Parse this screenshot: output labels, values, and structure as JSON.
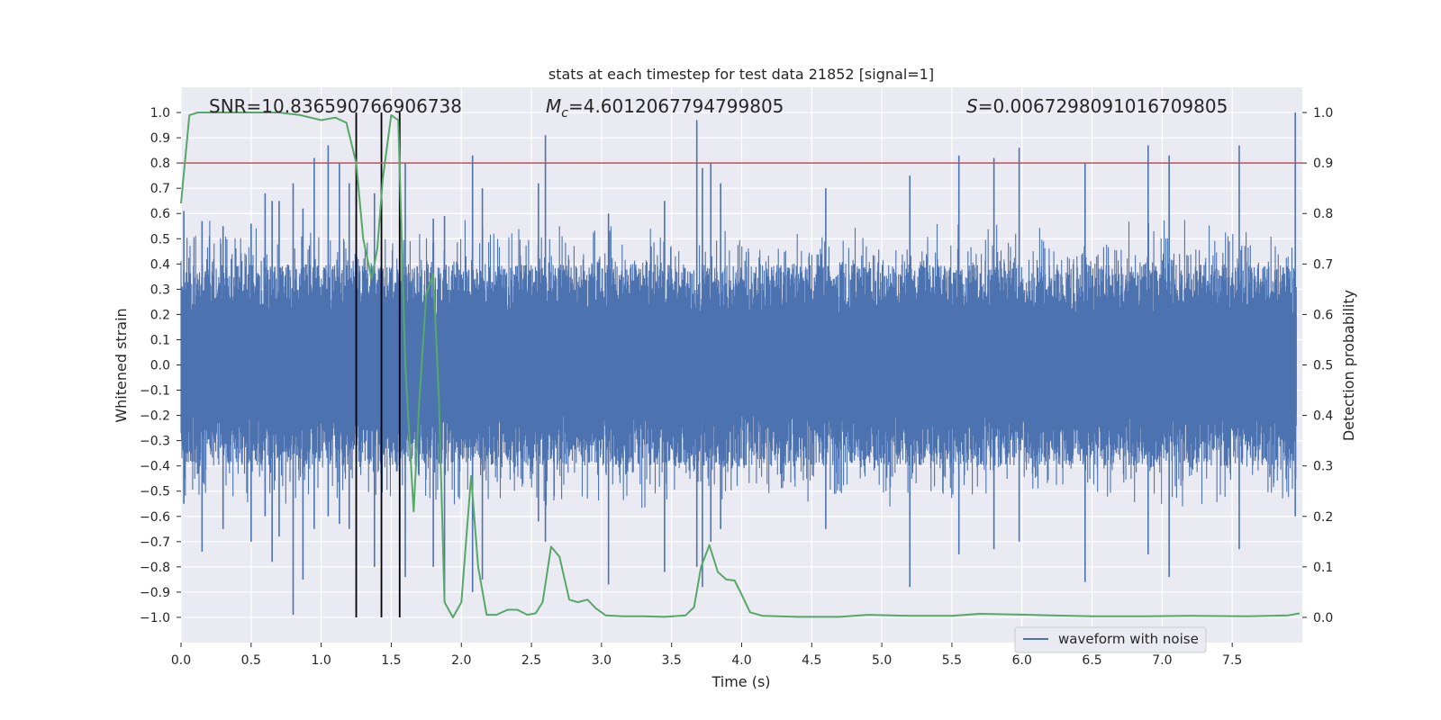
{
  "chart_data": {
    "type": "line",
    "title": "stats at each timestep for test data 21852 [signal=1]",
    "xlabel": "Time (s)",
    "ylabel": "Whitened strain",
    "y2label": "Detection probability",
    "xlim": [
      0.0,
      8.0
    ],
    "ylim": [
      -1.1,
      1.1
    ],
    "y2lim": [
      -0.05,
      1.05
    ],
    "x_ticks": [
      "0.0",
      "0.5",
      "1.0",
      "1.5",
      "2.0",
      "2.5",
      "3.0",
      "3.5",
      "4.0",
      "4.5",
      "5.0",
      "5.5",
      "6.0",
      "6.5",
      "7.0",
      "7.5"
    ],
    "y_ticks": [
      "−1.0",
      "−0.9",
      "−0.8",
      "−0.7",
      "−0.6",
      "−0.5",
      "−0.4",
      "−0.3",
      "−0.2",
      "−0.1",
      "0.0",
      "0.1",
      "0.2",
      "0.3",
      "0.4",
      "0.5",
      "0.6",
      "0.7",
      "0.8",
      "0.9",
      "1.0"
    ],
    "y2_ticks": [
      "0.0",
      "0.1",
      "0.2",
      "0.3",
      "0.4",
      "0.5",
      "0.6",
      "0.7",
      "0.8",
      "0.9",
      "1.0"
    ],
    "annotations": {
      "snr": "SNR=10.836590766906738",
      "mc_symbol": "M",
      "mc_sub": "c",
      "mc_value": "=4.6012067794799805",
      "s_symbol": "S",
      "s_value": "=0.0067298091016709805"
    },
    "threshold": {
      "value": 0.9,
      "axis": "y2",
      "color": "#c44e52"
    },
    "vertical_lines": [
      1.25,
      1.43,
      1.56
    ],
    "legend": {
      "location": "lower-right",
      "entries": [
        {
          "label": "waveform with noise",
          "color": "#4c72b0"
        }
      ]
    },
    "series": [
      {
        "name": "waveform with noise",
        "axis": "y",
        "color": "#4c72b0",
        "note": "dense whitened strain noise, mostly within ±0.4 with spikes up to about ±1.0",
        "peaks": [
          [
            0.02,
            0.61,
            -0.55
          ],
          [
            0.15,
            0.57,
            -0.74
          ],
          [
            0.3,
            0.55,
            -0.65
          ],
          [
            0.5,
            0.56,
            -0.7
          ],
          [
            0.6,
            0.68,
            -0.6
          ],
          [
            0.65,
            0.65,
            -0.78
          ],
          [
            0.7,
            0.65,
            -0.68
          ],
          [
            0.8,
            0.72,
            -0.99
          ],
          [
            0.87,
            0.62,
            -0.85
          ],
          [
            0.95,
            0.82,
            -0.65
          ],
          [
            1.05,
            0.87,
            -0.6
          ],
          [
            1.13,
            0.8,
            -0.63
          ],
          [
            1.2,
            0.72,
            -0.65
          ],
          [
            1.38,
            0.68,
            -0.8
          ],
          [
            1.6,
            0.8,
            -0.84
          ],
          [
            1.8,
            0.58,
            -0.8
          ],
          [
            1.88,
            0.59,
            -0.92
          ],
          [
            2.08,
            0.83,
            -0.9
          ],
          [
            2.15,
            0.7,
            -0.85
          ],
          [
            2.55,
            0.72,
            -0.62
          ],
          [
            2.6,
            0.91,
            -0.7
          ],
          [
            3.05,
            0.6,
            -0.87
          ],
          [
            3.45,
            0.65,
            -0.82
          ],
          [
            3.68,
            0.97,
            -0.8
          ],
          [
            3.72,
            0.78,
            -0.88
          ],
          [
            3.78,
            0.8,
            -0.7
          ],
          [
            3.85,
            0.72,
            -0.65
          ],
          [
            4.6,
            0.7,
            -0.65
          ],
          [
            5.2,
            0.75,
            -0.88
          ],
          [
            5.55,
            0.83,
            -0.75
          ],
          [
            5.8,
            0.82,
            -0.73
          ],
          [
            5.98,
            0.86,
            -0.7
          ],
          [
            6.45,
            0.8,
            -0.86
          ],
          [
            6.9,
            0.87,
            -0.75
          ],
          [
            7.05,
            0.83,
            -0.84
          ],
          [
            7.55,
            0.87,
            -0.73
          ],
          [
            7.95,
            1.0,
            -0.6
          ]
        ]
      },
      {
        "name": "detection probability",
        "axis": "y2",
        "color": "#55a868",
        "points": [
          [
            0.0,
            0.82
          ],
          [
            0.06,
            0.995
          ],
          [
            0.12,
            1.0
          ],
          [
            0.3,
            1.0
          ],
          [
            0.5,
            1.0
          ],
          [
            0.7,
            1.0
          ],
          [
            0.85,
            0.995
          ],
          [
            1.0,
            0.985
          ],
          [
            1.1,
            0.99
          ],
          [
            1.18,
            0.98
          ],
          [
            1.25,
            0.9
          ],
          [
            1.3,
            0.75
          ],
          [
            1.36,
            0.67
          ],
          [
            1.4,
            0.73
          ],
          [
            1.44,
            0.87
          ],
          [
            1.5,
            0.995
          ],
          [
            1.55,
            0.985
          ],
          [
            1.6,
            0.5
          ],
          [
            1.66,
            0.21
          ],
          [
            1.7,
            0.43
          ],
          [
            1.75,
            0.64
          ],
          [
            1.8,
            0.68
          ],
          [
            1.84,
            0.43
          ],
          [
            1.88,
            0.03
          ],
          [
            1.94,
            0.0
          ],
          [
            2.0,
            0.03
          ],
          [
            2.07,
            0.28
          ],
          [
            2.12,
            0.1
          ],
          [
            2.18,
            0.005
          ],
          [
            2.25,
            0.005
          ],
          [
            2.33,
            0.015
          ],
          [
            2.4,
            0.015
          ],
          [
            2.47,
            0.005
          ],
          [
            2.53,
            0.008
          ],
          [
            2.58,
            0.03
          ],
          [
            2.64,
            0.14
          ],
          [
            2.7,
            0.12
          ],
          [
            2.77,
            0.035
          ],
          [
            2.83,
            0.03
          ],
          [
            2.9,
            0.035
          ],
          [
            2.96,
            0.018
          ],
          [
            3.03,
            0.004
          ],
          [
            3.15,
            0.002
          ],
          [
            3.3,
            0.002
          ],
          [
            3.45,
            0.001
          ],
          [
            3.6,
            0.004
          ],
          [
            3.66,
            0.02
          ],
          [
            3.71,
            0.1
          ],
          [
            3.77,
            0.143
          ],
          [
            3.83,
            0.09
          ],
          [
            3.89,
            0.075
          ],
          [
            3.95,
            0.073
          ],
          [
            4.0,
            0.045
          ],
          [
            4.06,
            0.01
          ],
          [
            4.15,
            0.003
          ],
          [
            4.4,
            0.001
          ],
          [
            4.7,
            0.001
          ],
          [
            4.9,
            0.005
          ],
          [
            5.2,
            0.003
          ],
          [
            5.5,
            0.003
          ],
          [
            5.7,
            0.007
          ],
          [
            5.9,
            0.006
          ],
          [
            6.2,
            0.004
          ],
          [
            6.5,
            0.002
          ],
          [
            6.8,
            0.002
          ],
          [
            7.2,
            0.003
          ],
          [
            7.6,
            0.002
          ],
          [
            7.9,
            0.004
          ],
          [
            7.98,
            0.008
          ]
        ]
      }
    ]
  }
}
